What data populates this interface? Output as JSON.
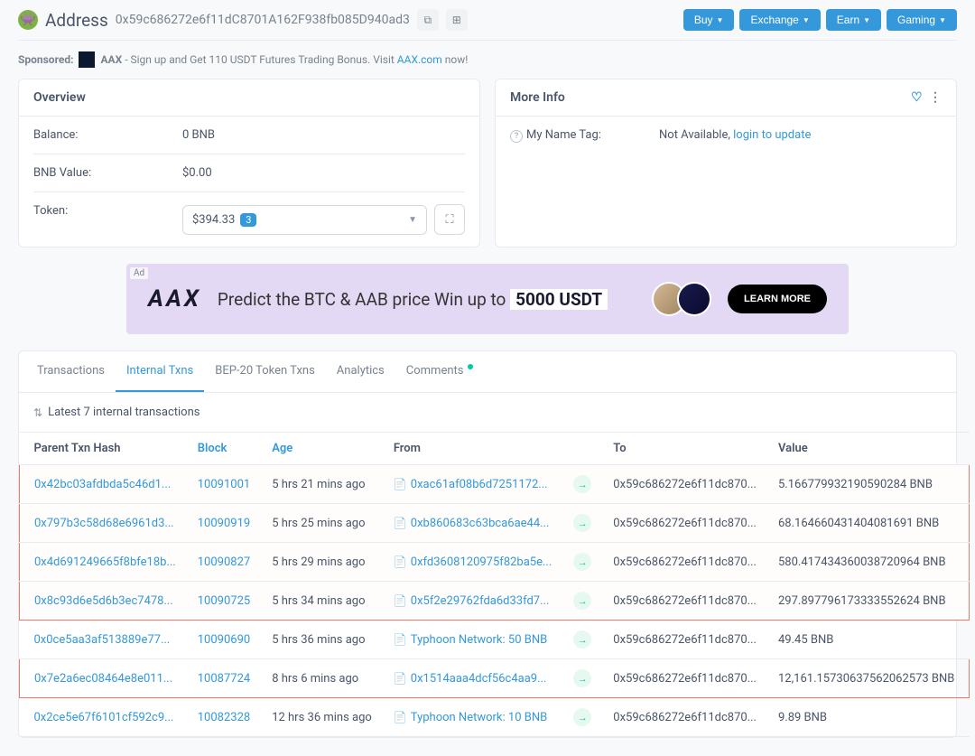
{
  "header": {
    "label": "Address",
    "hash": "0x59c686272e6f11dC8701A162F938fb085D940ad3",
    "buttons": [
      "Buy",
      "Exchange",
      "Earn",
      "Gaming"
    ]
  },
  "sponsored": {
    "prefix": "Sponsored:",
    "brand": "AAX",
    "text": " - Sign up and Get 110 USDT Futures Trading Bonus. Visit ",
    "link": "AAX.com",
    "suffix": " now!"
  },
  "overview": {
    "title": "Overview",
    "balance_label": "Balance:",
    "balance_value": "0 BNB",
    "bnb_value_label": "BNB Value:",
    "bnb_value": "$0.00",
    "token_label": "Token:",
    "token_value": "$394.33",
    "token_count": "3"
  },
  "more_info": {
    "title": "More Info",
    "nametag_label": "My Name Tag:",
    "nametag_value": "Not Available, ",
    "nametag_link": "login to update"
  },
  "ad": {
    "tag": "Ad",
    "logo": "AAX",
    "text1": "Predict the BTC & AAB price  Win up to ",
    "usdt": "5000 USDT",
    "btn": "LEARN MORE"
  },
  "tabs": [
    "Transactions",
    "Internal Txns",
    "BEP-20 Token Txns",
    "Analytics",
    "Comments"
  ],
  "table_info": "Latest 7 internal transactions",
  "columns": [
    "Parent Txn Hash",
    "Block",
    "Age",
    "From",
    "",
    "To",
    "Value"
  ],
  "rows": [
    {
      "hash": "0x42bc03afdbda5c46d1...",
      "block": "10091001",
      "age": "5 hrs 21 mins ago",
      "from": "0xac61af08b6d7251172...",
      "to": "0x59c686272e6f11dc870...",
      "value": "5.166779932190590284 BNB",
      "hl": "g1-top"
    },
    {
      "hash": "0x797b3c58d68e6961d3...",
      "block": "10090919",
      "age": "5 hrs 25 mins ago",
      "from": "0xb860683c63bca6ae44...",
      "to": "0x59c686272e6f11dc870...",
      "value": "68.164660431404081691 BNB",
      "hl": "g1"
    },
    {
      "hash": "0x4d691249665f8bfe18b...",
      "block": "10090827",
      "age": "5 hrs 29 mins ago",
      "from": "0xfd3608120975f82ba5e...",
      "to": "0x59c686272e6f11dc870...",
      "value": "580.417434360038720964 BNB",
      "hl": "g1"
    },
    {
      "hash": "0x8c93d6e5d6b3ec7478...",
      "block": "10090725",
      "age": "5 hrs 34 mins ago",
      "from": "0x5f2e29762fda6d33fd7...",
      "to": "0x59c686272e6f11dc870...",
      "value": "297.897796173333552624 BNB",
      "hl": "g1-bottom"
    },
    {
      "hash": "0x0ce5aa3af513889e77...",
      "block": "10090690",
      "age": "5 hrs 36 mins ago",
      "from": "Typhoon Network: 50 BNB",
      "to": "0x59c686272e6f11dc870...",
      "value": "49.45 BNB",
      "hl": ""
    },
    {
      "hash": "0x7e2a6ec08464e8e011...",
      "block": "10087724",
      "age": "8 hrs 6 mins ago",
      "from": "0x1514aaa4dcf56c4aa9...",
      "to": "0x59c686272e6f11dc870...",
      "value": "12,161.15730637562062573 BNB",
      "hl": "single"
    },
    {
      "hash": "0x2ce5e67f6101cf592c9...",
      "block": "10082328",
      "age": "12 hrs 36 mins ago",
      "from": "Typhoon Network: 10 BNB",
      "to": "0x59c686272e6f11dc870...",
      "value": "9.89 BNB",
      "hl": ""
    }
  ]
}
